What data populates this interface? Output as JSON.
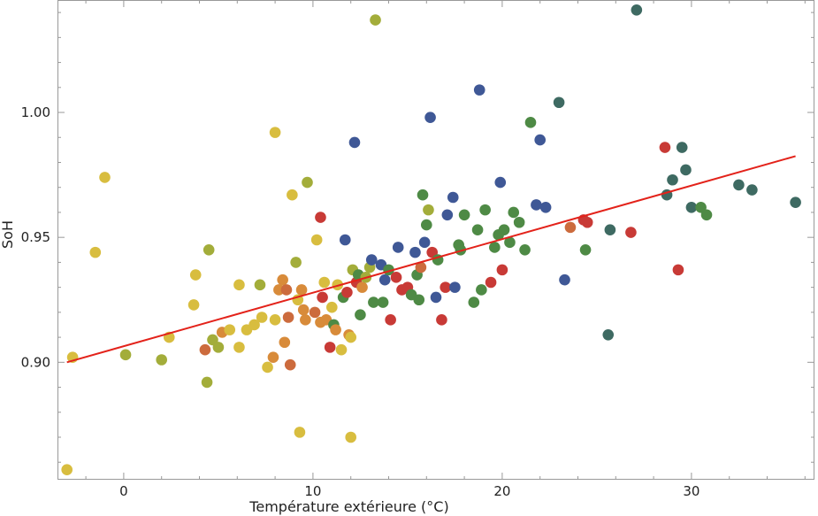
{
  "chart_data": {
    "type": "scatter",
    "title": "",
    "xlabel": "Température extérieure (°C)",
    "ylabel": "SoH",
    "xlim": [
      -3.5,
      36.5
    ],
    "ylim": [
      0.853,
      1.045
    ],
    "x_major_ticks": [
      0,
      10,
      20,
      30
    ],
    "x_minor_step": 2,
    "y_major_ticks": [
      0.9,
      0.95,
      1.0
    ],
    "y_major_tick_labels": [
      "0.90",
      "0.95",
      "1.00"
    ],
    "y_minor_step": 0.01,
    "grid": false,
    "legend": "none",
    "point_colors": {
      "y": "#D8BD3F",
      "o": "#D88B3A",
      "ro": "#CC6B3D",
      "r": "#C83A36",
      "olive": "#A3AD3A",
      "g": "#4E8A45",
      "teal": "#3E6A62",
      "b": "#3F5896"
    },
    "fit_line": {
      "x": [
        -3,
        35.5
      ],
      "y": [
        0.9,
        0.9825
      ],
      "color": "#E3221A"
    },
    "points": [
      [
        -3,
        0.857,
        "y"
      ],
      [
        -2.7,
        0.902,
        "y"
      ],
      [
        -1.5,
        0.944,
        "y"
      ],
      [
        -1,
        0.974,
        "y"
      ],
      [
        0.1,
        0.903,
        "olive"
      ],
      [
        2,
        0.901,
        "olive"
      ],
      [
        2.4,
        0.91,
        "y"
      ],
      [
        3.7,
        0.923,
        "y"
      ],
      [
        3.8,
        0.935,
        "y"
      ],
      [
        4.3,
        0.905,
        "ro"
      ],
      [
        4.4,
        0.892,
        "olive"
      ],
      [
        4.5,
        0.945,
        "olive"
      ],
      [
        4.7,
        0.909,
        "olive"
      ],
      [
        5,
        0.906,
        "olive"
      ],
      [
        5.2,
        0.912,
        "o"
      ],
      [
        5.6,
        0.913,
        "y"
      ],
      [
        6.1,
        0.906,
        "y"
      ],
      [
        6.1,
        0.931,
        "y"
      ],
      [
        6.5,
        0.913,
        "y"
      ],
      [
        6.9,
        0.915,
        "y"
      ],
      [
        7.2,
        0.931,
        "olive"
      ],
      [
        7.3,
        0.918,
        "y"
      ],
      [
        7.6,
        0.898,
        "y"
      ],
      [
        7.9,
        0.902,
        "o"
      ],
      [
        8,
        0.917,
        "y"
      ],
      [
        8,
        0.992,
        "y"
      ],
      [
        8.2,
        0.929,
        "o"
      ],
      [
        8.4,
        0.933,
        "o"
      ],
      [
        8.5,
        0.908,
        "o"
      ],
      [
        8.6,
        0.929,
        "ro"
      ],
      [
        8.7,
        0.918,
        "ro"
      ],
      [
        8.8,
        0.899,
        "ro"
      ],
      [
        8.9,
        0.967,
        "y"
      ],
      [
        9.1,
        0.94,
        "olive"
      ],
      [
        9.2,
        0.925,
        "y"
      ],
      [
        9.3,
        0.872,
        "y"
      ],
      [
        9.4,
        0.929,
        "o"
      ],
      [
        9.5,
        0.921,
        "o"
      ],
      [
        9.6,
        0.917,
        "o"
      ],
      [
        9.7,
        0.972,
        "olive"
      ],
      [
        10.1,
        0.92,
        "ro"
      ],
      [
        10.2,
        0.949,
        "y"
      ],
      [
        10.4,
        0.916,
        "o"
      ],
      [
        10.4,
        0.958,
        "r"
      ],
      [
        10.5,
        0.926,
        "r"
      ],
      [
        10.6,
        0.932,
        "y"
      ],
      [
        10.7,
        0.917,
        "o"
      ],
      [
        10.9,
        0.906,
        "r"
      ],
      [
        11,
        0.922,
        "y"
      ],
      [
        11.1,
        0.915,
        "g"
      ],
      [
        11.2,
        0.913,
        "o"
      ],
      [
        11.3,
        0.931,
        "y"
      ],
      [
        11.5,
        0.905,
        "y"
      ],
      [
        11.6,
        0.926,
        "g"
      ],
      [
        11.7,
        0.949,
        "b"
      ],
      [
        11.8,
        0.928,
        "r"
      ],
      [
        11.9,
        0.911,
        "o"
      ],
      [
        12,
        0.91,
        "y"
      ],
      [
        12,
        0.87,
        "y"
      ],
      [
        12.1,
        0.937,
        "olive"
      ],
      [
        12.2,
        0.988,
        "b"
      ],
      [
        12.3,
        0.932,
        "r"
      ],
      [
        12.4,
        0.935,
        "g"
      ],
      [
        12.5,
        0.919,
        "g"
      ],
      [
        12.6,
        0.93,
        "o"
      ],
      [
        12.8,
        0.934,
        "olive"
      ],
      [
        13,
        0.938,
        "olive"
      ],
      [
        13.1,
        0.941,
        "b"
      ],
      [
        13.2,
        0.924,
        "g"
      ],
      [
        13.3,
        1.037,
        "olive"
      ],
      [
        13.6,
        0.939,
        "b"
      ],
      [
        13.7,
        0.924,
        "g"
      ],
      [
        13.8,
        0.933,
        "b"
      ],
      [
        14,
        0.937,
        "g"
      ],
      [
        14.1,
        0.917,
        "r"
      ],
      [
        14.4,
        0.934,
        "r"
      ],
      [
        14.5,
        0.946,
        "b"
      ],
      [
        14.7,
        0.929,
        "r"
      ],
      [
        15,
        0.93,
        "r"
      ],
      [
        15.2,
        0.927,
        "g"
      ],
      [
        15.4,
        0.944,
        "b"
      ],
      [
        15.5,
        0.935,
        "g"
      ],
      [
        15.6,
        0.925,
        "g"
      ],
      [
        15.7,
        0.938,
        "ro"
      ],
      [
        15.8,
        0.967,
        "g"
      ],
      [
        15.9,
        0.948,
        "b"
      ],
      [
        16,
        0.955,
        "g"
      ],
      [
        16.1,
        0.961,
        "olive"
      ],
      [
        16.2,
        0.998,
        "b"
      ],
      [
        16.3,
        0.944,
        "r"
      ],
      [
        16.5,
        0.926,
        "b"
      ],
      [
        16.6,
        0.941,
        "g"
      ],
      [
        16.8,
        0.917,
        "r"
      ],
      [
        17,
        0.93,
        "r"
      ],
      [
        17.1,
        0.959,
        "b"
      ],
      [
        17.4,
        0.966,
        "b"
      ],
      [
        17.5,
        0.93,
        "b"
      ],
      [
        17.7,
        0.947,
        "g"
      ],
      [
        17.8,
        0.945,
        "g"
      ],
      [
        18,
        0.959,
        "g"
      ],
      [
        18.5,
        0.924,
        "g"
      ],
      [
        18.7,
        0.953,
        "g"
      ],
      [
        18.8,
        1.009,
        "b"
      ],
      [
        18.9,
        0.929,
        "g"
      ],
      [
        19.1,
        0.961,
        "g"
      ],
      [
        19.4,
        0.932,
        "r"
      ],
      [
        19.6,
        0.946,
        "g"
      ],
      [
        19.8,
        0.951,
        "g"
      ],
      [
        19.9,
        0.972,
        "b"
      ],
      [
        20,
        0.937,
        "r"
      ],
      [
        20.1,
        0.953,
        "g"
      ],
      [
        20.4,
        0.948,
        "g"
      ],
      [
        20.6,
        0.96,
        "g"
      ],
      [
        20.9,
        0.956,
        "g"
      ],
      [
        21.2,
        0.945,
        "g"
      ],
      [
        21.5,
        0.996,
        "g"
      ],
      [
        21.8,
        0.963,
        "b"
      ],
      [
        22,
        0.989,
        "b"
      ],
      [
        22.3,
        0.962,
        "b"
      ],
      [
        23,
        1.004,
        "teal"
      ],
      [
        23.3,
        0.933,
        "b"
      ],
      [
        23.6,
        0.954,
        "ro"
      ],
      [
        24.3,
        0.957,
        "r"
      ],
      [
        24.4,
        0.945,
        "g"
      ],
      [
        24.5,
        0.956,
        "r"
      ],
      [
        25.6,
        0.911,
        "teal"
      ],
      [
        25.7,
        0.953,
        "teal"
      ],
      [
        26.8,
        0.952,
        "r"
      ],
      [
        27.1,
        1.041,
        "teal"
      ],
      [
        28.6,
        0.986,
        "r"
      ],
      [
        28.7,
        0.967,
        "teal"
      ],
      [
        29,
        0.973,
        "teal"
      ],
      [
        29.3,
        0.937,
        "r"
      ],
      [
        29.5,
        0.986,
        "teal"
      ],
      [
        29.7,
        0.977,
        "teal"
      ],
      [
        30,
        0.962,
        "teal"
      ],
      [
        30.5,
        0.962,
        "g"
      ],
      [
        30.8,
        0.959,
        "g"
      ],
      [
        32.5,
        0.971,
        "teal"
      ],
      [
        33.2,
        0.969,
        "teal"
      ],
      [
        35.5,
        0.964,
        "teal"
      ]
    ]
  }
}
